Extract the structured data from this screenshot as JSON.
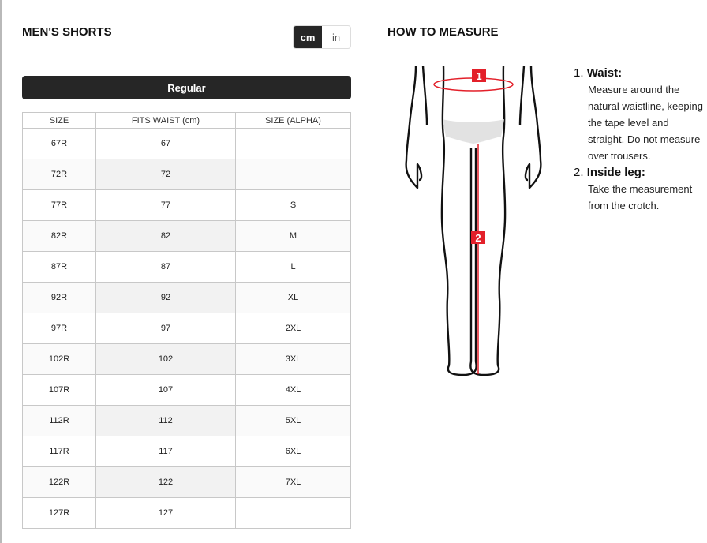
{
  "left": {
    "title": "MEN'S SHORTS",
    "units": [
      {
        "label": "cm",
        "selected": true
      },
      {
        "label": "in",
        "selected": false
      }
    ],
    "fit_label": "Regular",
    "table": {
      "headers": [
        "SIZE",
        "FITS WAIST (cm)",
        "SIZE (ALPHA)"
      ],
      "rows": [
        [
          "67R",
          "67",
          ""
        ],
        [
          "72R",
          "72",
          ""
        ],
        [
          "77R",
          "77",
          "S"
        ],
        [
          "82R",
          "82",
          "M"
        ],
        [
          "87R",
          "87",
          "L"
        ],
        [
          "92R",
          "92",
          "XL"
        ],
        [
          "97R",
          "97",
          "2XL"
        ],
        [
          "102R",
          "102",
          "3XL"
        ],
        [
          "107R",
          "107",
          "4XL"
        ],
        [
          "112R",
          "112",
          "5XL"
        ],
        [
          "117R",
          "117",
          "6XL"
        ],
        [
          "122R",
          "122",
          "7XL"
        ],
        [
          "127R",
          "127",
          ""
        ]
      ]
    }
  },
  "right": {
    "title": "HOW TO MEASURE",
    "figure": {
      "markers": [
        "1",
        "2"
      ],
      "accent": "#e3202a"
    },
    "steps": [
      {
        "num": "1.",
        "title": "Waist:",
        "text": "Measure around the natural waistline, keeping the tape level and straight. Do not measure over trousers."
      },
      {
        "num": "2.",
        "title": "Inside leg:",
        "text": "Take the measurement from the crotch."
      }
    ]
  }
}
